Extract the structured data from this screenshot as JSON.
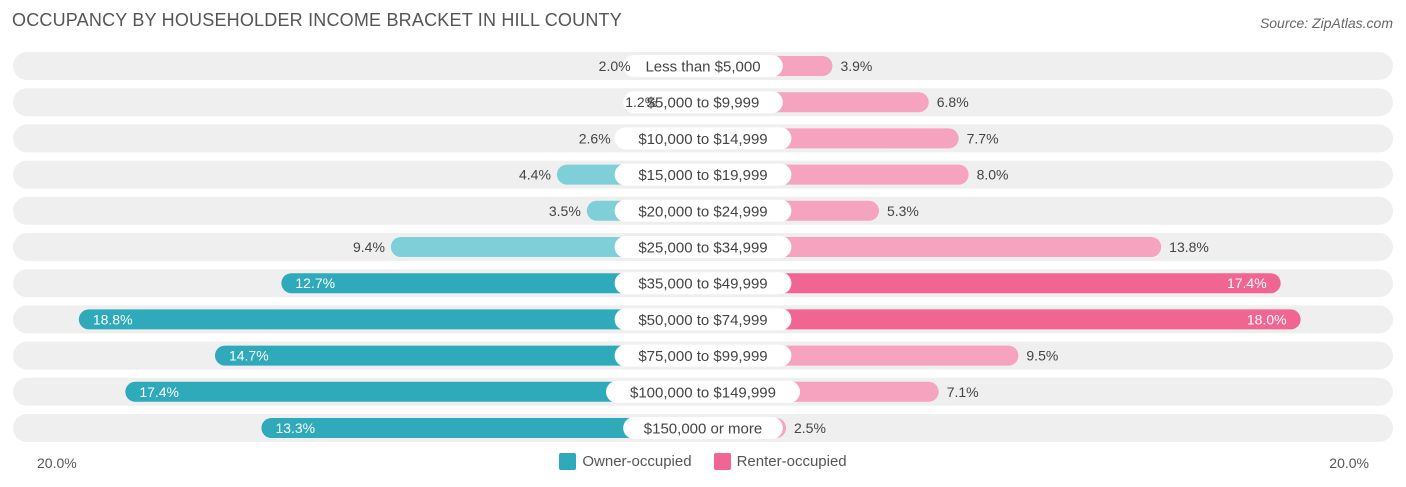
{
  "header": {
    "title": "OCCUPANCY BY HOUSEHOLDER INCOME BRACKET IN HILL COUNTY",
    "source": "Source: ZipAtlas.com"
  },
  "axis": {
    "left_label": "20.0%",
    "right_label": "20.0%"
  },
  "legend": {
    "owner_label": "Owner-occupied",
    "renter_label": "Renter-occupied"
  },
  "colors": {
    "owner_light": "#7fcfd8",
    "owner_dark": "#2eaabb",
    "renter_light": "#f5a3bf",
    "renter_dark": "#f06592",
    "row_bg": "#efefef"
  },
  "chart_data": {
    "type": "bar",
    "orientation": "horizontal-diverging",
    "title": "OCCUPANCY BY HOUSEHOLDER INCOME BRACKET IN HILL COUNTY",
    "categories": [
      "Less than $5,000",
      "$5,000 to $9,999",
      "$10,000 to $14,999",
      "$15,000 to $19,999",
      "$20,000 to $24,999",
      "$25,000 to $34,999",
      "$35,000 to $49,999",
      "$50,000 to $74,999",
      "$75,000 to $99,999",
      "$100,000 to $149,999",
      "$150,000 or more"
    ],
    "series": [
      {
        "name": "Owner-occupied",
        "values": [
          2.0,
          1.2,
          2.6,
          4.4,
          3.5,
          9.4,
          12.7,
          18.8,
          14.7,
          17.4,
          13.3
        ]
      },
      {
        "name": "Renter-occupied",
        "values": [
          3.9,
          6.8,
          7.7,
          8.0,
          5.3,
          13.8,
          17.4,
          18.0,
          9.5,
          7.1,
          2.5
        ]
      }
    ],
    "value_labels": {
      "owner": [
        "2.0%",
        "1.2%",
        "2.6%",
        "4.4%",
        "3.5%",
        "9.4%",
        "12.7%",
        "18.8%",
        "14.7%",
        "17.4%",
        "13.3%"
      ],
      "renter": [
        "3.9%",
        "6.8%",
        "7.7%",
        "8.0%",
        "5.3%",
        "13.8%",
        "17.4%",
        "18.0%",
        "9.5%",
        "7.1%",
        "2.5%"
      ]
    },
    "xlim": [
      -20,
      20
    ],
    "legend_position": "bottom-center"
  }
}
